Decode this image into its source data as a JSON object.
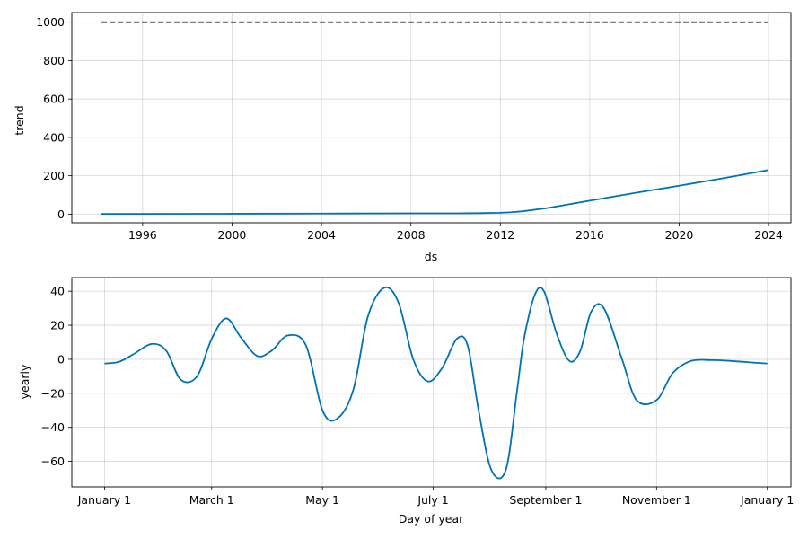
{
  "chart_data": [
    {
      "type": "line",
      "xlabel": "ds",
      "ylabel": "trend",
      "x_ticks": [
        "1996",
        "2000",
        "2004",
        "2008",
        "2012",
        "2016",
        "2020",
        "2024"
      ],
      "y_ticks": [
        "0",
        "200",
        "400",
        "600",
        "800",
        "1000"
      ],
      "xlim": [
        "1992-11-01",
        "2025-01-01"
      ],
      "ylim": [
        -45,
        1050
      ],
      "grid": true,
      "series": [
        {
          "type": "cap",
          "color": "#000000",
          "x": [
            "1994-03-01",
            "2024-01-01"
          ],
          "values": [
            1000,
            1000
          ]
        },
        {
          "type": "trend",
          "color": "#0072B2",
          "x": [
            "1994-03-01",
            "2000-01-01",
            "2004-01-01",
            "2008-01-01",
            "2010-01-01",
            "2011-01-01",
            "2012-01-01",
            "2012-07-01",
            "2013-01-01",
            "2014-01-01",
            "2015-01-01",
            "2016-01-01",
            "2018-01-01",
            "2020-01-01",
            "2022-01-01",
            "2024-01-01"
          ],
          "values": [
            1,
            2,
            3,
            4,
            4,
            5,
            7,
            10,
            15,
            30,
            50,
            70,
            110,
            148,
            188,
            230
          ]
        }
      ]
    },
    {
      "type": "line",
      "xlabel": "Day of year",
      "ylabel": "yearly",
      "x_ticks": [
        "January 1",
        "March 1",
        "May 1",
        "July 1",
        "September 1",
        "November 1",
        "January 1"
      ],
      "y_ticks": [
        "−60",
        "−40",
        "−20",
        "0",
        "20",
        "40"
      ],
      "xlim": [
        -18,
        378
      ],
      "ylim": [
        -75,
        48
      ],
      "grid": true,
      "series": [
        {
          "color": "#0072B2",
          "x": [
            0,
            8,
            16,
            26,
            34,
            42,
            51,
            59,
            67,
            75,
            84,
            92,
            101,
            111,
            120,
            128,
            137,
            145,
            154,
            162,
            170,
            178,
            186,
            194,
            200,
            206,
            213,
            221,
            227,
            231,
            237,
            242,
            249,
            256,
            262,
            268,
            275,
            285,
            293,
            304,
            313,
            323,
            335,
            345,
            358,
            365
          ],
          "values": [
            -2.5,
            -1.5,
            3,
            9,
            5,
            -12,
            -10,
            12,
            24,
            13,
            2,
            5,
            14,
            8,
            -30,
            -35,
            -18,
            25,
            42,
            33,
            0,
            -13,
            -5,
            12,
            8,
            -30,
            -65,
            -65,
            -20,
            12,
            38,
            40,
            15,
            -1,
            5,
            28,
            30,
            0,
            -24,
            -24,
            -8,
            -1,
            -0.5,
            -1,
            -2,
            -2.5
          ]
        }
      ]
    }
  ]
}
